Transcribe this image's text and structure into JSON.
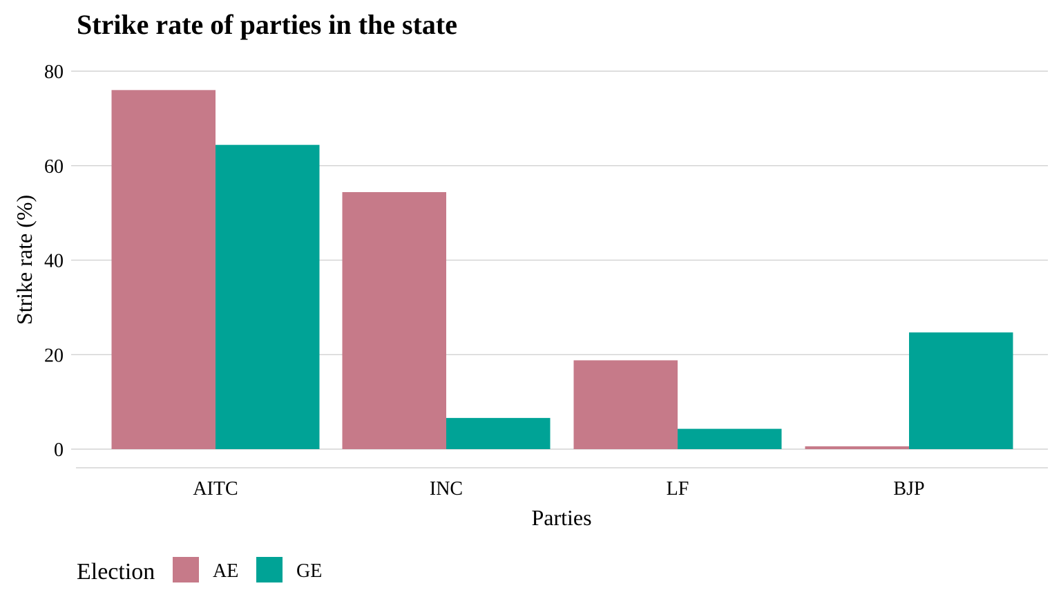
{
  "chart_data": {
    "type": "bar",
    "title": "Strike rate of parties in the state",
    "xlabel": "Parties",
    "ylabel": "Strike rate (%)",
    "categories": [
      "AITC",
      "INC",
      "LF",
      "BJP"
    ],
    "series": [
      {
        "name": "AE",
        "values": [
          76.0,
          54.4,
          18.8,
          0.6
        ],
        "color": "#C67A89"
      },
      {
        "name": "GE",
        "values": [
          64.4,
          6.6,
          4.3,
          24.7
        ],
        "color": "#00A396"
      }
    ],
    "ylim": [
      0,
      80
    ],
    "yticks": [
      0,
      20,
      40,
      60,
      80
    ],
    "grid": true,
    "legend": {
      "title": "Election",
      "position": "bottom-left"
    }
  }
}
